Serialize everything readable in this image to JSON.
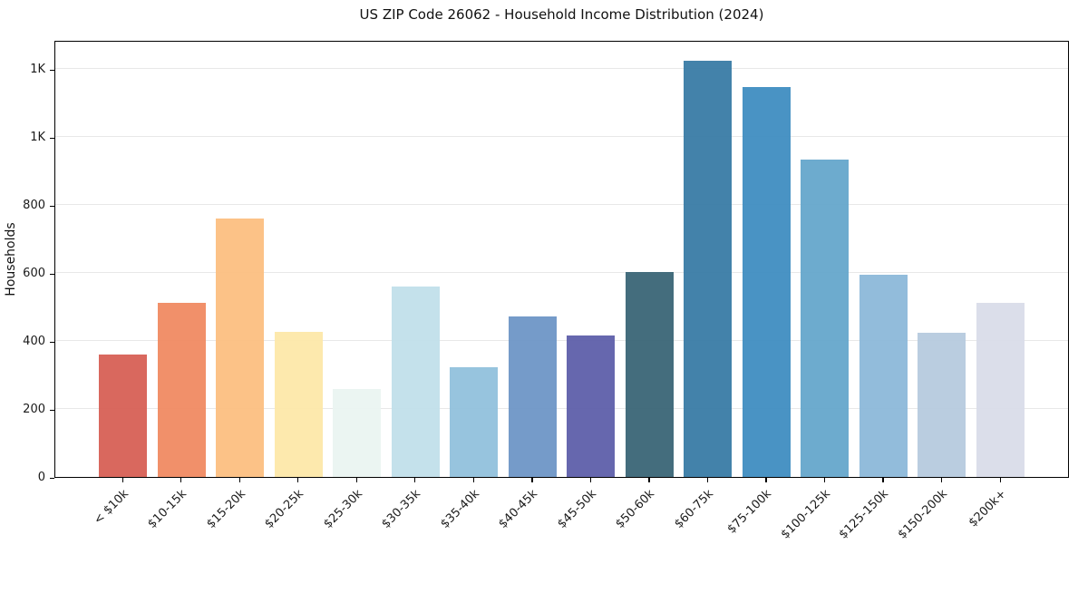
{
  "title": "US ZIP Code 26062 - Household Income Distribution (2024)",
  "chart_data": {
    "type": "bar",
    "title": "US ZIP Code 26062 - Household Income Distribution (2024)",
    "xlabel": "",
    "ylabel": "Households",
    "categories": [
      "< $10k",
      "$10-15k",
      "$15-20k",
      "$20-25k",
      "$25-30k",
      "$30-35k",
      "$35-40k",
      "$40-45k",
      "$45-50k",
      "$50-60k",
      "$60-75k",
      "$75-100k",
      "$100-125k",
      "$125-150k",
      "$150-200k",
      "$200k+"
    ],
    "values": [
      360,
      512,
      761,
      427,
      259,
      560,
      323,
      472,
      417,
      603,
      1224,
      1147,
      934,
      595,
      425,
      513
    ],
    "bar_colors": [
      "#d65c52",
      "#f0885f",
      "#fcbd7e",
      "#fde7a7",
      "#e9f4f1",
      "#bfdfea",
      "#8fc0dc",
      "#6b93c5",
      "#5a5ba8",
      "#366273",
      "#3578a4",
      "#3b8bc0",
      "#62a5ca",
      "#8ab7d8",
      "#b5c9de",
      "#d8dbe8"
    ],
    "yticks": [
      {
        "value": 0,
        "label": "0"
      },
      {
        "value": 200,
        "label": "200"
      },
      {
        "value": 400,
        "label": "400"
      },
      {
        "value": 600,
        "label": "600"
      },
      {
        "value": 800,
        "label": "800"
      },
      {
        "value": 1000,
        "label": "1K"
      },
      {
        "value": 1200,
        "label": "1K"
      }
    ],
    "ylim": [
      0,
      1285
    ],
    "grid": "horizontal",
    "legend": "none"
  },
  "colors": {
    "background": "#ffffff",
    "grid": "#e8e8e8",
    "spine": "#000000",
    "text": "#1a1a1a"
  }
}
